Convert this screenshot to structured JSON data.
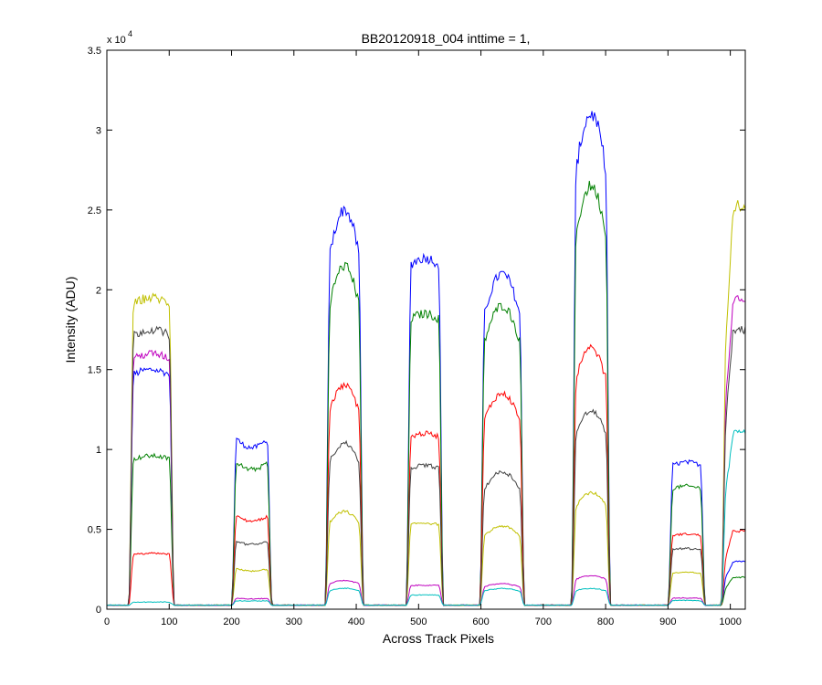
{
  "chart_data": {
    "type": "line",
    "title": "BB20120918_004 inttime = 1,",
    "xlabel": "Across Track Pixels",
    "ylabel": "Intensity (ADU)",
    "xlim": [
      0,
      1024
    ],
    "ylim": [
      0,
      35000
    ],
    "xticks": [
      "0",
      "100",
      "200",
      "300",
      "400",
      "500",
      "600",
      "700",
      "800",
      "900",
      "1000"
    ],
    "yticks": [
      "0",
      "0.5",
      "1",
      "1.5",
      "2",
      "2.5",
      "3",
      "3.5"
    ],
    "y_exponent_base": "x 10",
    "y_exponent_power": "4",
    "grid": false,
    "legend": "none",
    "baseline": 250,
    "segments": [
      {
        "start": 35,
        "end": 108,
        "shape": "flat"
      },
      {
        "start": 200,
        "end": 265,
        "shape": "dip"
      },
      {
        "start": 350,
        "end": 412,
        "shape": "peak"
      },
      {
        "start": 480,
        "end": 540,
        "shape": "flat"
      },
      {
        "start": 598,
        "end": 670,
        "shape": "peak"
      },
      {
        "start": 745,
        "end": 808,
        "shape": "peak"
      },
      {
        "start": 900,
        "end": 960,
        "shape": "flat"
      },
      {
        "start": 985,
        "end": 1024,
        "shape": "rise"
      }
    ],
    "series": [
      {
        "color": "#0000ff",
        "values": [
          15000,
          11000,
          25000,
          22000,
          21000,
          31000,
          9200,
          3000
        ]
      },
      {
        "color": "#008000",
        "values": [
          9600,
          9500,
          21500,
          18500,
          19000,
          26500,
          7700,
          2000
        ]
      },
      {
        "color": "#ff0000",
        "values": [
          3500,
          6000,
          14000,
          11000,
          13500,
          16300,
          4700,
          4900
        ]
      },
      {
        "color": "#c0c000",
        "values": [
          19500,
          2600,
          6100,
          5400,
          5200,
          7300,
          2300,
          25300
        ]
      },
      {
        "color": "#bf00bf",
        "values": [
          16000,
          700,
          1800,
          1500,
          1600,
          2100,
          700,
          19500
        ]
      },
      {
        "color": "#404040",
        "values": [
          17500,
          4400,
          10400,
          9000,
          8600,
          12400,
          3800,
          17500
        ]
      },
      {
        "color": "#00bfbf",
        "values": [
          450,
          550,
          1300,
          900,
          1300,
          1300,
          550,
          11100
        ]
      }
    ]
  }
}
